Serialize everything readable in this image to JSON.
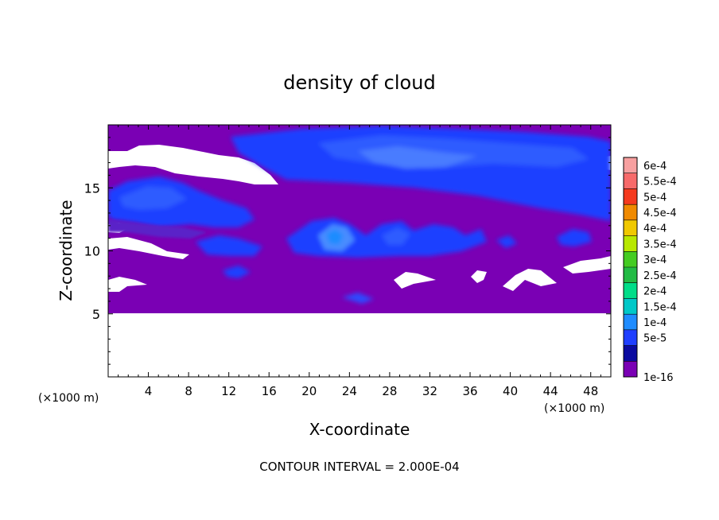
{
  "chart_data": {
    "type": "heatmap",
    "title": "density of cloud",
    "xlabel": "X-coordinate",
    "ylabel": "Z-coordinate",
    "x_units": "(×1000 m)",
    "y_units": "(×1000 m)",
    "xlim": [
      0,
      50
    ],
    "ylim": [
      0,
      20
    ],
    "x_ticks": [
      4,
      8,
      12,
      16,
      20,
      24,
      28,
      32,
      36,
      40,
      44,
      48
    ],
    "y_ticks": [
      5,
      10,
      15
    ],
    "colorbar": {
      "labels": [
        "6e-4",
        "5.5e-4",
        "5e-4",
        "4.5e-4",
        "4e-4",
        "3.5e-4",
        "3e-4",
        "2.5e-4",
        "2e-4",
        "1.5e-4",
        "1e-4",
        "5e-5",
        "1e-16"
      ],
      "colors": [
        "#f7a0a0",
        "#f76a6a",
        "#f53a1e",
        "#f08a00",
        "#f0c800",
        "#b8e800",
        "#44cc22",
        "#22bb44",
        "#00dd88",
        "#00c8c8",
        "#1f8cff",
        "#1f3fff",
        "#0a0aa0",
        "#7a00b4"
      ]
    },
    "cloud_base_z": 5.1,
    "cloud_top_z": 19.6,
    "background_color": "#7a00b4",
    "contour_interval": "CONTOUR INTERVAL = 2.000E-04"
  }
}
